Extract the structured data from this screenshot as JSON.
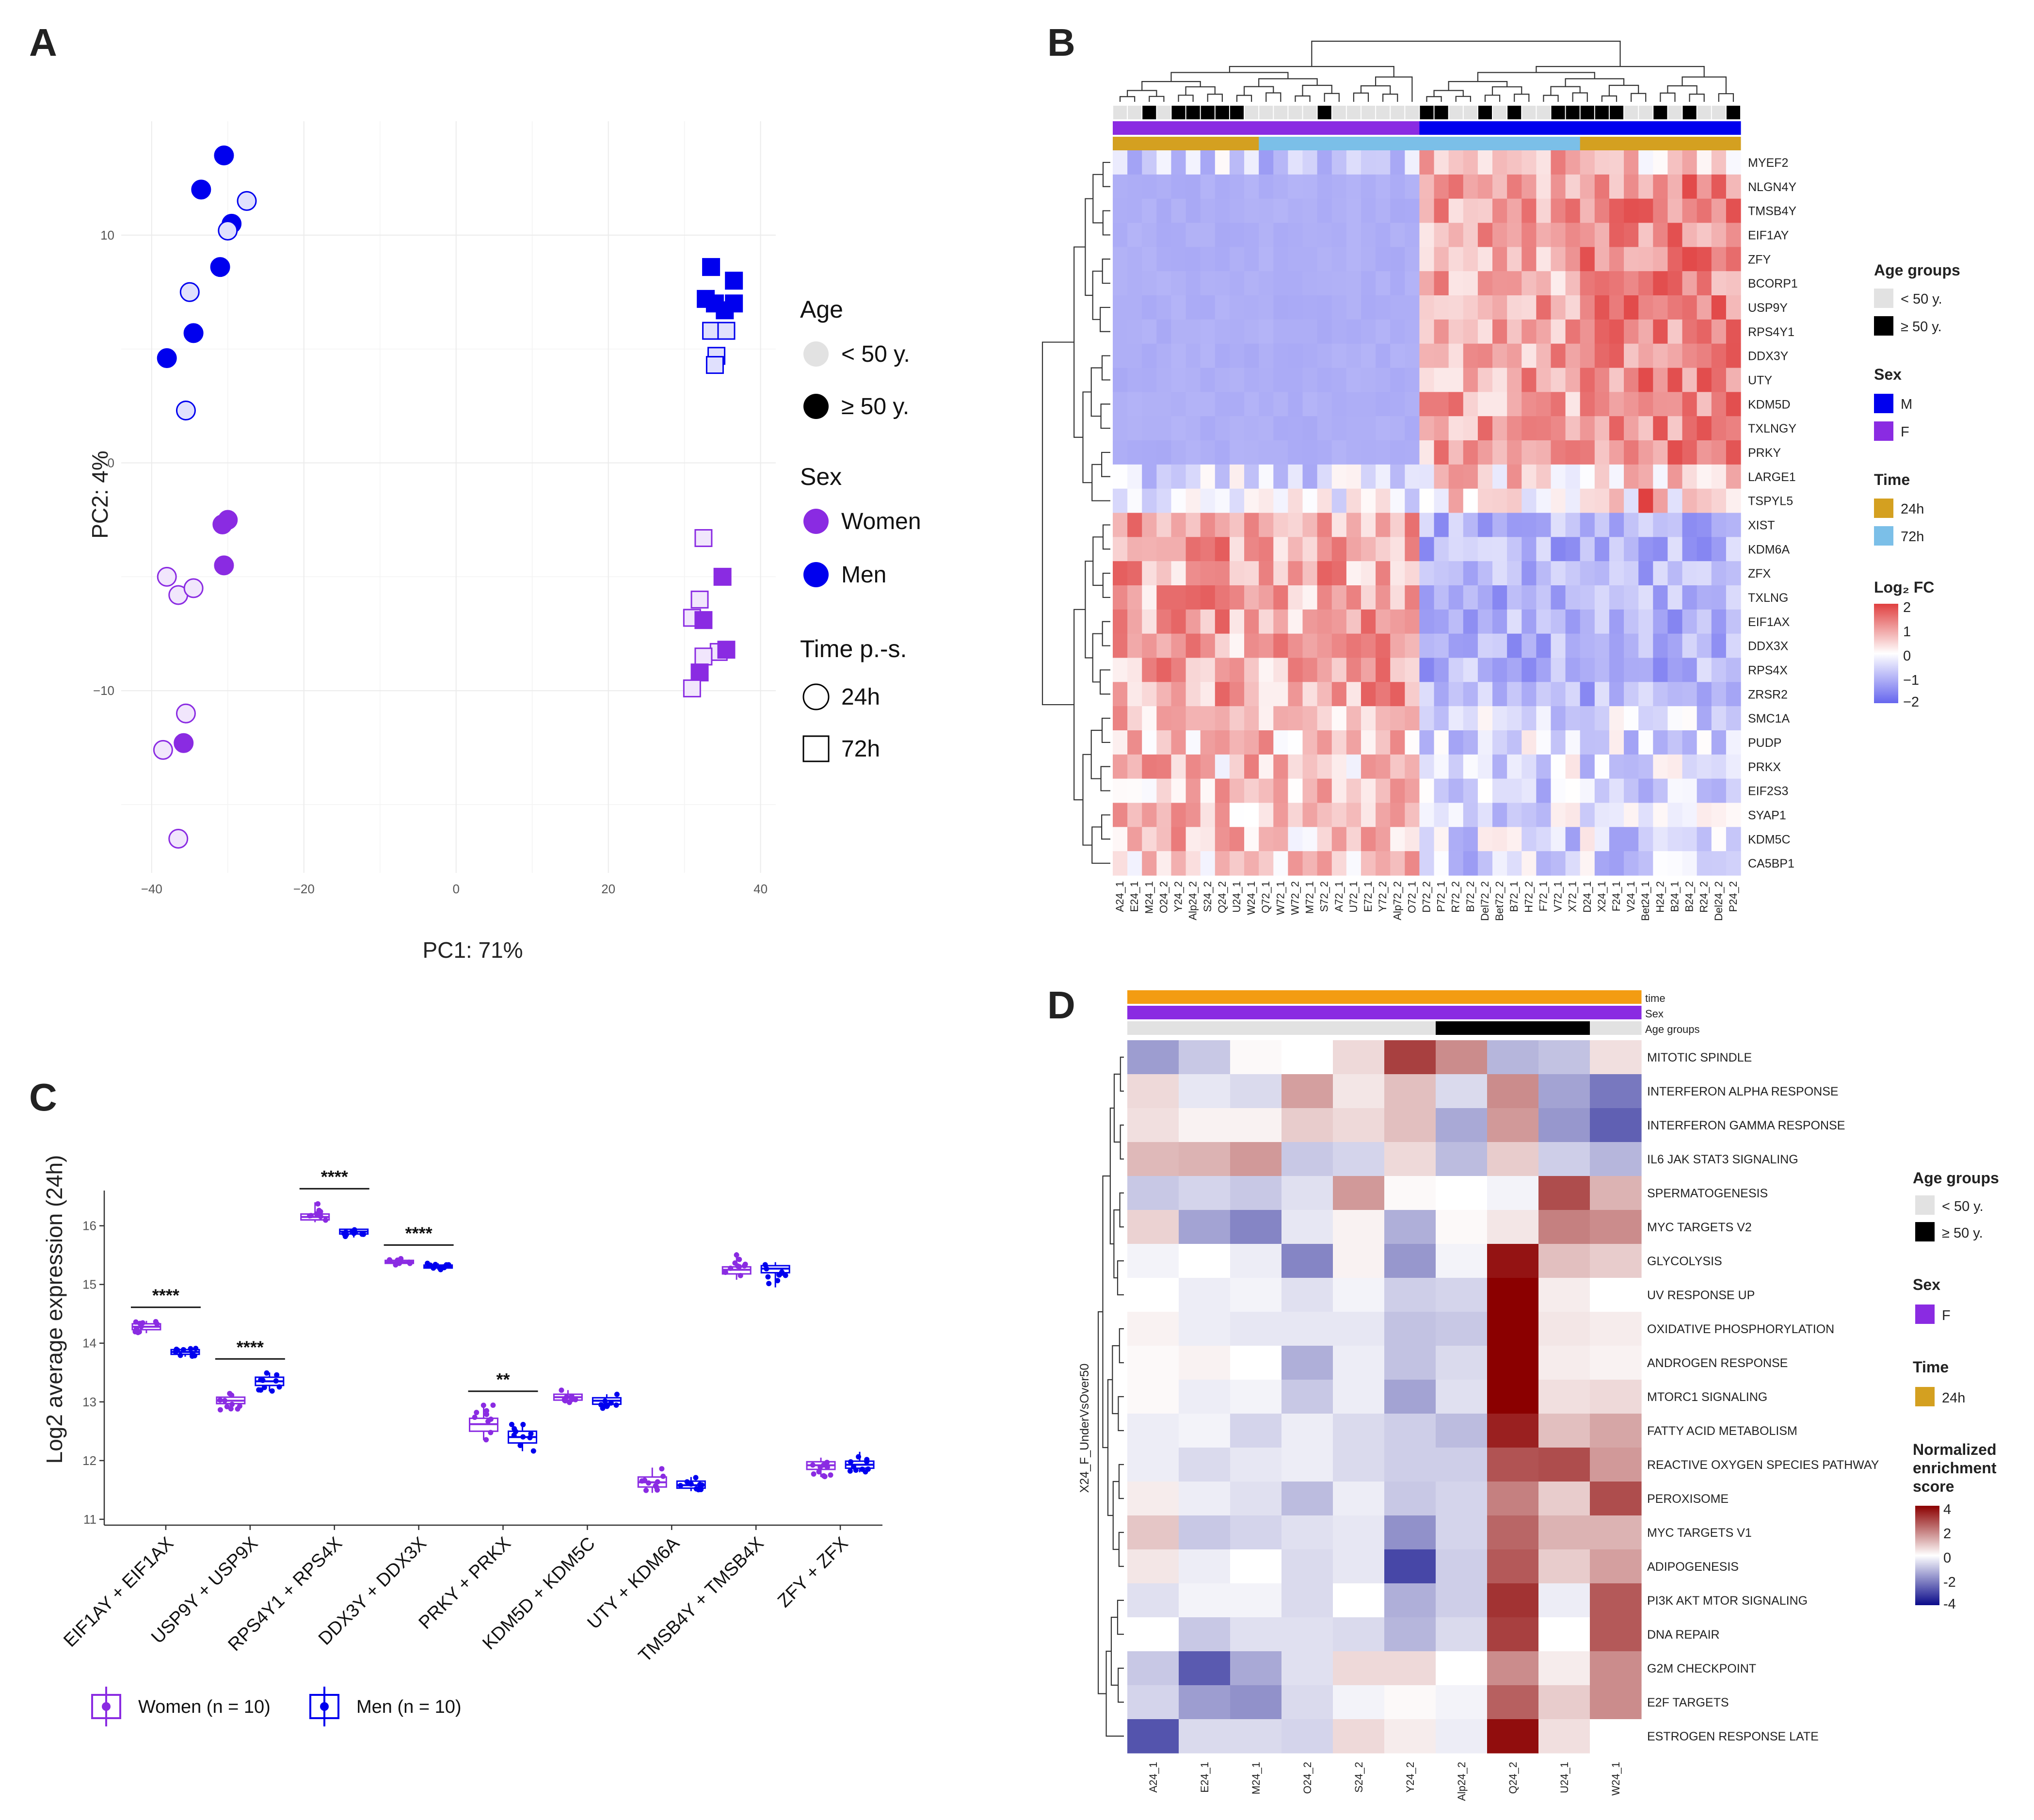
{
  "panels": {
    "a": "A",
    "b": "B",
    "c": "C",
    "d": "D"
  },
  "colors": {
    "women": "#8a2be2",
    "men": "#0000ee",
    "young": "#e2e2e2",
    "old": "#000000",
    "t24": "#d4a020",
    "t72": "#7bbfe8",
    "neg": "#6666ee",
    "pos": "#e04040",
    "deep_red": "#8b0000",
    "deep_blue": "#0a0a8a",
    "nes_orange": "#f39c12"
  },
  "chart_data": [
    {
      "type": "scatter",
      "panel": "A",
      "xlabel": "PC1: 71%",
      "ylabel": "PC2: 4%",
      "xlim": [
        -44,
        42
      ],
      "ylim": [
        -18,
        15
      ],
      "xticks": [
        -40,
        -20,
        0,
        20,
        40
      ],
      "yticks": [
        -10,
        0,
        10
      ],
      "legend": {
        "age_title": "Age",
        "age_young": "< 50 y.",
        "age_old": "≥ 50 y.",
        "sex_title": "Sex",
        "sex_women": "Women",
        "sex_men": "Men",
        "time_title": "Time p.-s.",
        "time_24": "24h",
        "time_72": "72h"
      },
      "points": [
        {
          "x": -30.5,
          "y": 13.5,
          "sex": "M",
          "age": "old",
          "time": "24h"
        },
        {
          "x": -33.5,
          "y": 12.0,
          "sex": "M",
          "age": "old",
          "time": "24h"
        },
        {
          "x": -27.5,
          "y": 11.5,
          "sex": "M",
          "age": "young",
          "time": "24h"
        },
        {
          "x": -29.5,
          "y": 10.5,
          "sex": "M",
          "age": "old",
          "time": "24h"
        },
        {
          "x": -30.0,
          "y": 10.2,
          "sex": "M",
          "age": "young",
          "time": "24h"
        },
        {
          "x": -31.0,
          "y": 8.6,
          "sex": "M",
          "age": "old",
          "time": "24h"
        },
        {
          "x": -35.0,
          "y": 7.5,
          "sex": "M",
          "age": "young",
          "time": "24h"
        },
        {
          "x": -34.5,
          "y": 5.7,
          "sex": "M",
          "age": "old",
          "time": "24h"
        },
        {
          "x": -38.0,
          "y": 4.6,
          "sex": "M",
          "age": "old",
          "time": "24h"
        },
        {
          "x": -35.5,
          "y": 2.3,
          "sex": "M",
          "age": "young",
          "time": "24h"
        },
        {
          "x": -30.0,
          "y": -2.5,
          "sex": "F",
          "age": "old",
          "time": "24h"
        },
        {
          "x": -30.7,
          "y": -2.7,
          "sex": "F",
          "age": "old",
          "time": "24h"
        },
        {
          "x": -30.5,
          "y": -4.5,
          "sex": "F",
          "age": "old",
          "time": "24h"
        },
        {
          "x": -38.0,
          "y": -5.0,
          "sex": "F",
          "age": "young",
          "time": "24h"
        },
        {
          "x": -36.5,
          "y": -5.8,
          "sex": "F",
          "age": "young",
          "time": "24h"
        },
        {
          "x": -34.5,
          "y": -5.5,
          "sex": "F",
          "age": "young",
          "time": "24h"
        },
        {
          "x": -35.5,
          "y": -11.0,
          "sex": "F",
          "age": "young",
          "time": "24h"
        },
        {
          "x": -38.5,
          "y": -12.6,
          "sex": "F",
          "age": "young",
          "time": "24h"
        },
        {
          "x": -35.8,
          "y": -12.3,
          "sex": "F",
          "age": "old",
          "time": "24h"
        },
        {
          "x": -36.5,
          "y": -16.5,
          "sex": "F",
          "age": "young",
          "time": "24h"
        },
        {
          "x": 33.5,
          "y": 8.6,
          "sex": "M",
          "age": "old",
          "time": "72h"
        },
        {
          "x": 36.5,
          "y": 8.0,
          "sex": "M",
          "age": "old",
          "time": "72h"
        },
        {
          "x": 32.8,
          "y": 7.2,
          "sex": "M",
          "age": "old",
          "time": "72h"
        },
        {
          "x": 34.0,
          "y": 7.0,
          "sex": "M",
          "age": "old",
          "time": "72h"
        },
        {
          "x": 36.5,
          "y": 7.0,
          "sex": "M",
          "age": "old",
          "time": "72h"
        },
        {
          "x": 35.3,
          "y": 6.7,
          "sex": "M",
          "age": "old",
          "time": "72h"
        },
        {
          "x": 33.5,
          "y": 5.8,
          "sex": "M",
          "age": "young",
          "time": "72h"
        },
        {
          "x": 35.5,
          "y": 5.8,
          "sex": "M",
          "age": "young",
          "time": "72h"
        },
        {
          "x": 34.2,
          "y": 4.7,
          "sex": "M",
          "age": "young",
          "time": "72h"
        },
        {
          "x": 34.0,
          "y": 4.3,
          "sex": "M",
          "age": "young",
          "time": "72h"
        },
        {
          "x": 32.5,
          "y": -3.3,
          "sex": "F",
          "age": "young",
          "time": "72h"
        },
        {
          "x": 35.0,
          "y": -5.0,
          "sex": "F",
          "age": "old",
          "time": "72h"
        },
        {
          "x": 32.0,
          "y": -6.0,
          "sex": "F",
          "age": "young",
          "time": "72h"
        },
        {
          "x": 31.0,
          "y": -6.8,
          "sex": "F",
          "age": "young",
          "time": "72h"
        },
        {
          "x": 32.5,
          "y": -6.9,
          "sex": "F",
          "age": "old",
          "time": "72h"
        },
        {
          "x": 34.5,
          "y": -8.3,
          "sex": "F",
          "age": "young",
          "time": "72h"
        },
        {
          "x": 35.5,
          "y": -8.2,
          "sex": "F",
          "age": "old",
          "time": "72h"
        },
        {
          "x": 32.5,
          "y": -8.5,
          "sex": "F",
          "age": "young",
          "time": "72h"
        },
        {
          "x": 32.0,
          "y": -9.2,
          "sex": "F",
          "age": "old",
          "time": "72h"
        },
        {
          "x": 31.0,
          "y": -9.9,
          "sex": "F",
          "age": "young",
          "time": "72h"
        }
      ]
    },
    {
      "type": "heatmap",
      "panel": "B",
      "rows": [
        "MYEF2",
        "NLGN4Y",
        "TMSB4Y",
        "EIF1AY",
        "ZFY",
        "BCORP1",
        "USP9Y",
        "RPS4Y1",
        "DDX3Y",
        "UTY",
        "KDM5D",
        "TXLNGY",
        "PRKY",
        "LARGE1",
        "TSPYL5",
        "XIST",
        "KDM6A",
        "ZFX",
        "TXLNG",
        "EIF1AX",
        "DDX3X",
        "RPS4X",
        "ZRSR2",
        "SMC1A",
        "PUDP",
        "PRKX",
        "EIF2S3",
        "SYAP1",
        "KDM5C",
        "CA5BP1"
      ],
      "columns": [
        "A24_1",
        "E24_1",
        "M24_1",
        "O24_2",
        "Y24_2",
        "Alp24_2",
        "S24_2",
        "Q24_2",
        "U24_1",
        "W24_1",
        "Q72_1",
        "W72_1",
        "W72_2",
        "M72_1",
        "S72_2",
        "A72_1",
        "U72_1",
        "E72_1",
        "Y72_2",
        "Alp72_2",
        "O72_1",
        "D72_2",
        "P72_1",
        "R72_2",
        "B72_2",
        "Del72_2",
        "Bet72_2",
        "B72_1",
        "H72_2",
        "F72_1",
        "V72_1",
        "X72_1",
        "D24_1",
        "X24_1",
        "F24_1",
        "V24_1",
        "Bet24_1",
        "H24_2",
        "B24_1",
        "B24_2",
        "R24_2",
        "Del24_2",
        "P24_2"
      ],
      "legend": {
        "age_title": "Age groups",
        "age_young": "< 50 y.",
        "age_old": "≥ 50 y.",
        "sex_title": "Sex",
        "sex_m": "M",
        "sex_f": "F",
        "time_title": "Time",
        "time_24": "24h",
        "time_72": "72h",
        "fc_title": "Log₂ FC",
        "fc_ticks": [
          "2",
          "1",
          "0",
          "−1",
          "−2"
        ]
      },
      "color_range": [
        -2,
        2
      ]
    },
    {
      "type": "bar",
      "subtype": "boxplot",
      "panel": "C",
      "ylabel": "Log2 average expression (24h)",
      "ylim": [
        10.9,
        16.6
      ],
      "yticks": [
        11,
        12,
        13,
        14,
        15,
        16
      ],
      "categories": [
        "EIF1AY + EIF1AX",
        "USP9Y + USP9X",
        "RPS4Y1 + RPS4X",
        "DDX3Y + DDX3X",
        "PRKY + PRKX",
        "KDM5D + KDM5C",
        "UTY + KDM6A",
        "TMSB4Y + TMSB4X",
        "ZFY + ZFX"
      ],
      "series": [
        {
          "name": "Women (n = 10)",
          "medians": [
            14.28,
            13.02,
            16.15,
            15.38,
            12.62,
            13.08,
            11.63,
            15.25,
            11.92
          ],
          "q1": [
            14.23,
            12.97,
            16.1,
            15.36,
            12.5,
            13.03,
            11.55,
            15.18,
            11.85
          ],
          "q3": [
            14.33,
            13.08,
            16.2,
            15.41,
            12.72,
            13.13,
            11.72,
            15.3,
            11.98
          ],
          "min": [
            14.17,
            12.86,
            16.06,
            15.33,
            12.35,
            12.98,
            11.45,
            15.08,
            11.72
          ],
          "max": [
            14.38,
            13.15,
            16.4,
            15.44,
            12.95,
            13.2,
            11.88,
            15.55,
            12.05
          ]
        },
        {
          "name": "Men (n = 10)",
          "medians": [
            13.85,
            13.35,
            15.9,
            15.3,
            12.4,
            13.02,
            11.58,
            15.27,
            11.93
          ],
          "q1": [
            13.81,
            13.28,
            15.86,
            15.28,
            12.3,
            12.96,
            11.53,
            15.2,
            11.87
          ],
          "q3": [
            13.89,
            13.42,
            15.94,
            15.33,
            12.5,
            13.07,
            11.65,
            15.32,
            11.99
          ],
          "min": [
            13.77,
            13.18,
            15.8,
            15.25,
            12.16,
            12.88,
            11.48,
            14.95,
            11.8
          ],
          "max": [
            13.92,
            13.5,
            15.97,
            15.36,
            12.62,
            13.13,
            11.72,
            15.38,
            12.15
          ]
        }
      ],
      "significance": [
        "****",
        "****",
        "****",
        "****",
        "**",
        "",
        "",
        "",
        ""
      ]
    },
    {
      "type": "heatmap",
      "panel": "D",
      "row_label": "X24_F_UnderVsOver50",
      "annotation_labels": [
        "time",
        "Sex",
        "Age groups"
      ],
      "columns": [
        "A24_1",
        "E24_1",
        "M24_1",
        "O24_2",
        "S24_2",
        "Y24_2",
        "Alp24_2",
        "Q24_2",
        "U24_1",
        "W24_1"
      ],
      "column_age": [
        "young",
        "young",
        "young",
        "young",
        "young",
        "young",
        "old",
        "old",
        "old",
        "young"
      ],
      "rows": [
        "MITOTIC SPINDLE",
        "INTERFERON ALPHA RESPONSE",
        "INTERFERON GAMMA RESPONSE",
        "IL6 JAK STAT3 SIGNALING",
        "SPERMATOGENESIS",
        "MYC TARGETS V2",
        "GLYCOLYSIS",
        "UV RESPONSE UP",
        "OXIDATIVE PHOSPHORYLATION",
        "ANDROGEN RESPONSE",
        "MTORC1 SIGNALING",
        "FATTY ACID METABOLISM",
        "REACTIVE OXYGEN SPECIES PATHWAY",
        "PEROXISOME",
        "MYC TARGETS V1",
        "ADIPOGENESIS",
        "PI3K AKT MTOR SIGNALING",
        "DNA REPAIR",
        "G2M CHECKPOINT",
        "E2F TARGETS",
        "ESTROGEN RESPONSE LATE"
      ],
      "values": [
        [
          -1.6,
          -0.9,
          0.1,
          0.0,
          0.6,
          3.0,
          1.8,
          -1.2,
          -1.0,
          0.5
        ],
        [
          0.6,
          -0.4,
          -0.6,
          1.5,
          0.4,
          1.0,
          -0.6,
          1.8,
          -1.5,
          -2.2
        ],
        [
          0.5,
          0.2,
          0.2,
          0.8,
          0.6,
          1.0,
          -1.4,
          1.6,
          -1.7,
          -2.6
        ],
        [
          1.1,
          1.2,
          1.6,
          -0.9,
          -0.7,
          0.6,
          -1.1,
          0.8,
          -0.8,
          -1.2
        ],
        [
          -0.9,
          -0.7,
          -0.9,
          -0.5,
          1.6,
          0.1,
          0.0,
          -0.2,
          2.8,
          1.2
        ],
        [
          0.7,
          -1.5,
          -2.0,
          -0.4,
          0.2,
          -1.3,
          0.1,
          0.4,
          2.0,
          1.8
        ],
        [
          -0.2,
          0.0,
          -0.3,
          -2.0,
          0.2,
          -1.7,
          -0.2,
          3.7,
          1.0,
          0.8
        ],
        [
          0.0,
          -0.3,
          -0.2,
          -0.5,
          -0.2,
          -0.8,
          -0.7,
          4.0,
          0.3,
          0.0
        ],
        [
          0.2,
          -0.3,
          -0.4,
          -0.4,
          -0.4,
          -1.0,
          -0.9,
          4.0,
          0.4,
          0.3
        ],
        [
          0.1,
          0.2,
          0.0,
          -1.3,
          -0.3,
          -1.0,
          -0.6,
          4.0,
          0.3,
          0.2
        ],
        [
          0.1,
          -0.3,
          -0.2,
          -0.9,
          -0.3,
          -1.5,
          -0.5,
          4.0,
          0.5,
          0.6
        ],
        [
          -0.3,
          -0.2,
          -0.7,
          -0.3,
          -0.6,
          -0.8,
          -1.1,
          3.5,
          1.0,
          1.4
        ],
        [
          -0.3,
          -0.6,
          -0.4,
          -0.3,
          -0.6,
          -0.8,
          -0.8,
          2.7,
          2.8,
          1.6
        ],
        [
          0.3,
          -0.3,
          -0.5,
          -1.1,
          -0.3,
          -0.9,
          -0.7,
          2.0,
          0.8,
          2.8
        ],
        [
          0.9,
          -0.9,
          -0.7,
          -0.5,
          -0.4,
          -1.8,
          -0.7,
          2.4,
          1.2,
          1.2
        ],
        [
          0.4,
          -0.3,
          0.0,
          -0.6,
          -0.4,
          -3.0,
          -0.8,
          2.6,
          0.8,
          1.5
        ],
        [
          -0.5,
          -0.2,
          -0.2,
          -0.6,
          0.0,
          -1.3,
          -0.8,
          3.2,
          -0.3,
          2.6
        ],
        [
          0.0,
          -0.9,
          -0.5,
          -0.5,
          -0.6,
          -1.2,
          -0.6,
          3.0,
          0.0,
          2.6
        ],
        [
          -0.9,
          -2.7,
          -1.4,
          -0.5,
          0.6,
          0.6,
          0.0,
          1.8,
          0.3,
          1.8
        ],
        [
          -0.7,
          -1.6,
          -1.8,
          -0.6,
          -0.2,
          0.1,
          -0.2,
          2.5,
          0.8,
          1.8
        ],
        [
          -2.8,
          -0.6,
          -0.6,
          -0.7,
          0.6,
          0.3,
          -0.3,
          3.8,
          0.5,
          0.0
        ]
      ],
      "legend": {
        "age_title": "Age groups",
        "age_young": "< 50 y.",
        "age_old": "≥ 50 y.",
        "sex_title": "Sex",
        "sex_f": "F",
        "time_title": "Time",
        "time_24": "24h",
        "nes_title_1": "Normalized",
        "nes_title_2": "enrichment",
        "nes_title_3": "score",
        "nes_ticks": [
          "4",
          "2",
          "0",
          "-2",
          "-4"
        ]
      },
      "color_range": [
        -4,
        4
      ]
    }
  ]
}
